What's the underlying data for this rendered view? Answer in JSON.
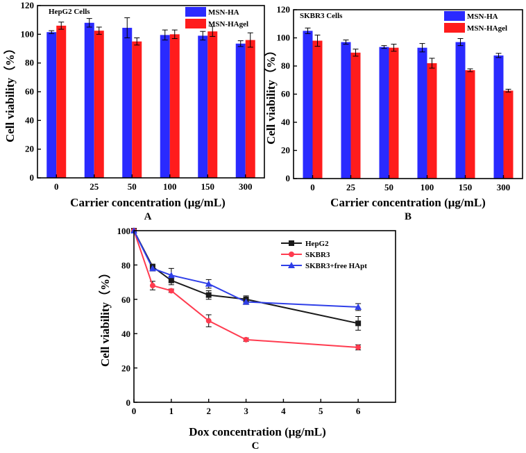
{
  "colors": {
    "msn_ha": "#2a2aff",
    "msn_hagel": "#ff1c1c",
    "hepg2": "#1a1a1a",
    "skbr3": "#ff3b4f",
    "skbr3_free": "#2f3fe8"
  },
  "chart_data": [
    {
      "type": "bar",
      "panel": "A",
      "title": "HepG2 Cells",
      "xlabel": "Carrier concentration (μg/mL)",
      "ylabel": "Cell viability（%）",
      "ylim": [
        0,
        120
      ],
      "yticks": [
        0,
        20,
        40,
        60,
        80,
        100,
        120
      ],
      "categories": [
        "0",
        "25",
        "50",
        "100",
        "150",
        "300"
      ],
      "series": [
        {
          "name": "MSN-HA",
          "color": "#2a2aff",
          "values": [
            101.5,
            108,
            104.5,
            99.5,
            99,
            93.5
          ],
          "errors": [
            1,
            3,
            7,
            3.5,
            3,
            2
          ]
        },
        {
          "name": "MSN-HAgel",
          "color": "#ff1c1c",
          "values": [
            106,
            102.5,
            95,
            100,
            102,
            96
          ],
          "errors": [
            2.5,
            2.5,
            2.5,
            3,
            3.5,
            5
          ]
        }
      ]
    },
    {
      "type": "bar",
      "panel": "B",
      "title": "SKBR3 Cells",
      "xlabel": "Carrier concentration (μg/mL)",
      "ylabel": "Cell viability（%）",
      "ylim": [
        0,
        120
      ],
      "yticks": [
        0,
        20,
        40,
        60,
        80,
        100,
        120
      ],
      "categories": [
        "0",
        "25",
        "50",
        "100",
        "150",
        "300"
      ],
      "series": [
        {
          "name": "MSN-HA",
          "color": "#2a2aff",
          "values": [
            105,
            97,
            93.5,
            93,
            97,
            87.5
          ],
          "errors": [
            2,
            1.5,
            1,
            3,
            2.5,
            1.5
          ]
        },
        {
          "name": "MSN-HAgel",
          "color": "#ff1c1c",
          "values": [
            98,
            89.5,
            93,
            82,
            77,
            62.5
          ],
          "errors": [
            4,
            2.5,
            2.5,
            3.5,
            1,
            1
          ]
        }
      ]
    },
    {
      "type": "line",
      "panel": "C",
      "xlabel": "Dox concentration (μg/mL)",
      "ylabel": "Cell viability（%）",
      "xlim": [
        0,
        7
      ],
      "ylim": [
        0,
        100
      ],
      "xticks": [
        0,
        1,
        2,
        3,
        4,
        5,
        6
      ],
      "yticks": [
        0,
        20,
        40,
        60,
        80,
        100
      ],
      "series": [
        {
          "name": "HepG2",
          "color": "#1a1a1a",
          "marker": "square",
          "x": [
            0,
            0.5,
            1,
            2,
            3,
            6
          ],
          "y": [
            100,
            79,
            71,
            62.5,
            60,
            46
          ],
          "errors": [
            0,
            1.5,
            2.5,
            2.5,
            2,
            4
          ]
        },
        {
          "name": "SKBR3",
          "color": "#ff3b4f",
          "marker": "circle",
          "x": [
            0,
            0.5,
            1,
            2,
            3,
            6
          ],
          "y": [
            100,
            68,
            65,
            47.5,
            36.5,
            32
          ],
          "errors": [
            0,
            2.5,
            1,
            3.5,
            1,
            1.5
          ]
        },
        {
          "name": "SKBR3+free HApt",
          "color": "#2f3fe8",
          "marker": "triangle",
          "x": [
            0,
            0.5,
            1,
            2,
            3,
            6
          ],
          "y": [
            100,
            78,
            74,
            69,
            58.5,
            55.5
          ],
          "errors": [
            0,
            1.5,
            4,
            2.5,
            1.5,
            2
          ]
        }
      ]
    }
  ]
}
